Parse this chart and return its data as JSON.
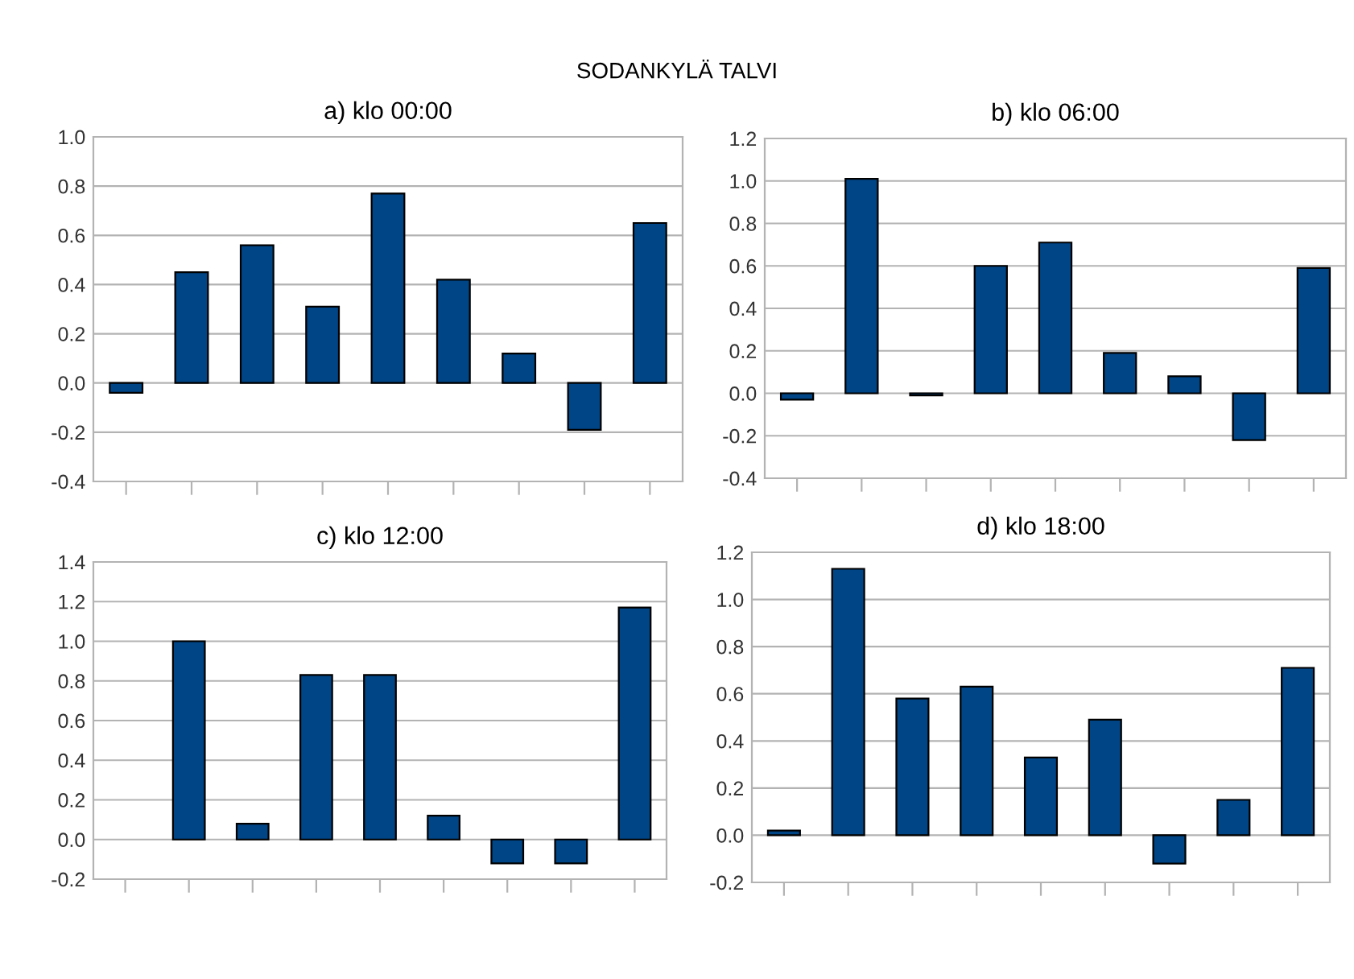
{
  "chart_data": [
    {
      "type": "bar",
      "title": "a) klo 00:00",
      "annotations": [
        "SODANKYLÄ TALVI"
      ],
      "categories": [
        null,
        null,
        null,
        null,
        null,
        null,
        null,
        null,
        null
      ],
      "series": [
        {
          "color": "#004586",
          "values": [
            -0.04,
            0.45,
            0.56,
            0.31,
            0.77,
            0.42,
            0.12,
            -0.19,
            0.65
          ]
        }
      ],
      "ylim": [
        -0.4,
        1.0
      ],
      "yticks": [
        {
          "value": -0.4,
          "label": "-0.4"
        },
        {
          "value": -0.2,
          "label": "-0.2"
        },
        {
          "value": 0,
          "label": "0.0"
        },
        0.2,
        0.4,
        0.6,
        0.8,
        {
          "value": 1.0,
          "label": "1.0"
        }
      ],
      "grid": "y",
      "tick_labels": "y"
    },
    {
      "type": "bar",
      "title": "b) klo 06:00",
      "categories": [
        null,
        null,
        null,
        null,
        null,
        null,
        null,
        null,
        null
      ],
      "series": [
        {
          "color": "#004586",
          "values": [
            -0.03,
            1.01,
            -0.01,
            0.6,
            0.71,
            0.19,
            0.08,
            -0.22,
            0.59
          ]
        }
      ],
      "ylim": [
        -0.4,
        1.2
      ],
      "yticks": [
        {
          "value": -0.4,
          "label": "-0.4"
        },
        {
          "value": -0.2,
          "label": "-0.2"
        },
        {
          "value": 0,
          "label": "0.0"
        },
        0.2,
        0.4,
        0.6,
        0.8,
        {
          "value": 1.0,
          "label": "1.0"
        },
        1.2
      ],
      "grid": "y",
      "tick_labels": "y"
    },
    {
      "type": "bar",
      "title": "c) klo 12:00",
      "categories": [
        null,
        null,
        null,
        null,
        null,
        null,
        null,
        null,
        null
      ],
      "series": [
        {
          "color": "#004586",
          "values": [
            null,
            1.0,
            0.08,
            0.83,
            0.83,
            0.12,
            -0.12,
            -0.12,
            1.17
          ]
        }
      ],
      "ylim": [
        -0.2,
        1.4
      ],
      "yticks": [
        {
          "value": -0.2,
          "label": "-0.2"
        },
        {
          "value": 0,
          "label": "0.0"
        },
        0.2,
        0.4,
        0.6,
        0.8,
        {
          "value": 1.0,
          "label": "1.0"
        },
        1.2,
        1.4
      ],
      "grid": "y",
      "tick_labels": "y"
    },
    {
      "type": "bar",
      "title": "d) klo 18:00",
      "categories": [
        null,
        null,
        null,
        null,
        null,
        null,
        null,
        null,
        null
      ],
      "series": [
        {
          "color": "#004586",
          "values": [
            0.02,
            1.13,
            0.58,
            0.63,
            0.33,
            0.49,
            -0.12,
            0.15,
            0.71
          ]
        }
      ],
      "ylim": [
        -0.2,
        1.2
      ],
      "yticks": [
        {
          "value": -0.2,
          "label": "-0.2"
        },
        {
          "value": 0,
          "label": "0.0"
        },
        0.2,
        0.4,
        0.6,
        0.8,
        {
          "value": 1.0,
          "label": "1.0"
        },
        1.2
      ],
      "grid": "y",
      "tick_labels": "y"
    }
  ]
}
